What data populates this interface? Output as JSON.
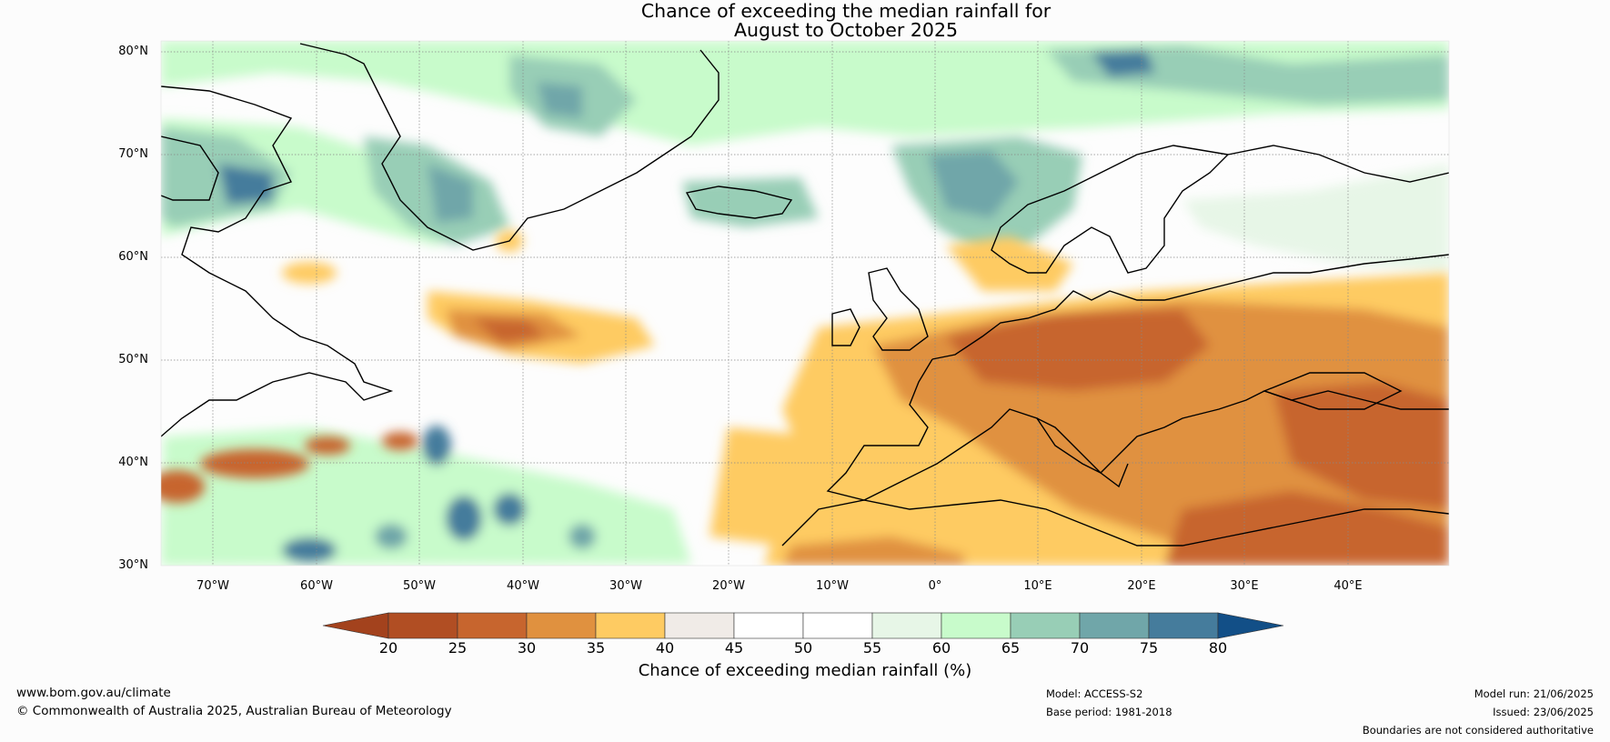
{
  "title": {
    "line1": "Chance of exceeding the median rainfall for",
    "line2": "August to October 2025"
  },
  "map": {
    "lat_labels": [
      "80°N",
      "70°N",
      "60°N",
      "50°N",
      "40°N",
      "30°N"
    ],
    "lon_labels": [
      "70°W",
      "60°W",
      "50°W",
      "40°W",
      "30°W",
      "20°W",
      "10°W",
      "0°",
      "10°E",
      "20°E",
      "30°E",
      "40°E"
    ],
    "extent": {
      "lon": [
        -75,
        50
      ],
      "lat": [
        30,
        81
      ]
    }
  },
  "colorbar": {
    "ticks": [
      "20",
      "25",
      "30",
      "35",
      "40",
      "45",
      "50",
      "55",
      "60",
      "65",
      "70",
      "75",
      "80"
    ],
    "colors": [
      "#a3421d",
      "#b14e23",
      "#c7652e",
      "#e0913f",
      "#fecb62",
      "#f0ebe7",
      "#ffffff",
      "#ffffff",
      "#e7f6e7",
      "#c8fbcb",
      "#98ceb6",
      "#70a6a9",
      "#457c9c",
      "#124f87"
    ],
    "label": "Chance of exceeding median rainfall (%)"
  },
  "footer": {
    "website": "www.bom.gov.au/climate",
    "copyright": "© Commonwealth of Australia 2025, Australian Bureau of Meteorology",
    "model": "Model: ACCESS-S2",
    "base_period": "Base period: 1981-2018",
    "model_run": "Model run: 21/06/2025",
    "issued": "Issued: 23/06/2025",
    "disclaimer": "Boundaries are not considered authoritative"
  }
}
